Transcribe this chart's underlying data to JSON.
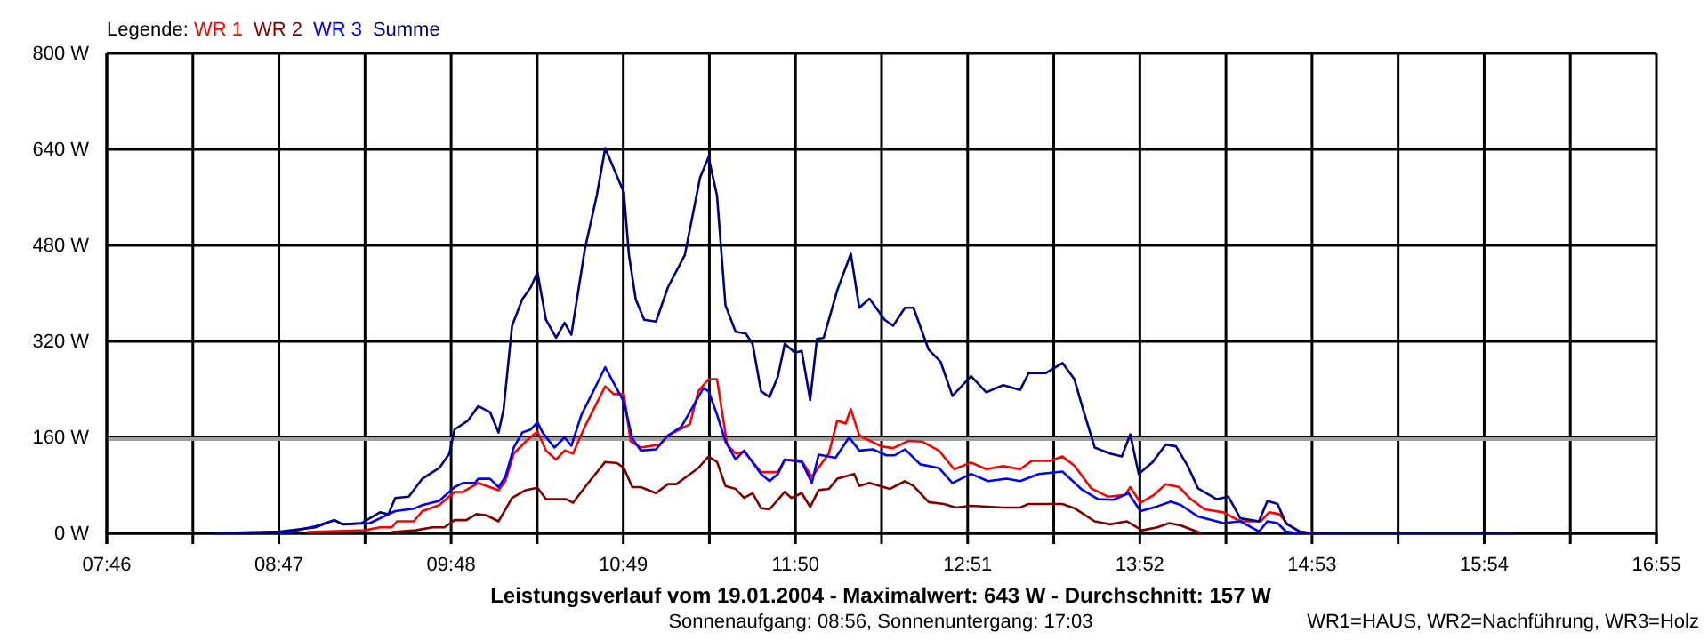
{
  "chart_data": {
    "type": "line",
    "title": "Leistungsverlauf vom 19.01.2004 - Maximalwert: 643 W - Durchschnitt: 157 W",
    "subtitle": "Sonnenaufgang: 08:56, Sonnenuntergang: 17:03",
    "annotations": [
      "WR1=HAUS, WR2=Nachführung, WR3=Holz"
    ],
    "legend_title": "Legende:",
    "legend": "top left",
    "grid": true,
    "marker": "none",
    "line_style": "solid",
    "xlim": [
      7.7667,
      16.9167
    ],
    "xticks": [
      {
        "value": 7.7667,
        "label": "07:46"
      },
      {
        "value": 8.275,
        "label": null
      },
      {
        "value": 8.7833,
        "label": "08:47"
      },
      {
        "value": 9.2917,
        "label": null
      },
      {
        "value": 9.8,
        "label": "09:48"
      },
      {
        "value": 10.3083,
        "label": null
      },
      {
        "value": 10.8167,
        "label": "10:49"
      },
      {
        "value": 11.325,
        "label": null
      },
      {
        "value": 11.8333,
        "label": "11:50"
      },
      {
        "value": 12.3417,
        "label": null
      },
      {
        "value": 12.85,
        "label": "12:51"
      },
      {
        "value": 13.3583,
        "label": null
      },
      {
        "value": 13.8667,
        "label": "13:52"
      },
      {
        "value": 14.375,
        "label": null
      },
      {
        "value": 14.8833,
        "label": "14:53"
      },
      {
        "value": 15.3917,
        "label": null
      },
      {
        "value": 15.9,
        "label": "15:54"
      },
      {
        "value": 16.4083,
        "label": null
      },
      {
        "value": 16.9167,
        "label": "16:55"
      }
    ],
    "ylim": [
      0,
      800
    ],
    "yticks": [
      {
        "value": 0,
        "label": "0 W"
      },
      {
        "value": 160,
        "label": "160 W"
      },
      {
        "value": 320,
        "label": "320 W"
      },
      {
        "value": 480,
        "label": "480 W"
      },
      {
        "value": 640,
        "label": "640 W"
      },
      {
        "value": 800,
        "label": "800 W"
      }
    ],
    "ref_lines": [
      {
        "axis": "y",
        "value": 157,
        "color": "#a0a0a0"
      }
    ],
    "series": [
      {
        "name": "WR 1",
        "color": "#ff0000",
        "x": [
          8.95,
          9.29,
          9.38,
          9.45,
          9.48,
          9.58,
          9.63,
          9.73,
          9.82,
          9.87,
          9.96,
          10.08,
          10.12,
          10.17,
          10.24,
          10.31,
          10.36,
          10.42,
          10.47,
          10.52,
          10.59,
          10.71,
          10.76,
          10.82,
          10.86,
          10.92,
          11.03,
          11.08,
          11.21,
          11.26,
          11.32,
          11.37,
          11.43,
          11.48,
          11.53,
          11.63,
          11.73,
          11.77,
          11.87,
          11.93,
          12.03,
          12.08,
          12.13,
          12.16,
          12.21,
          12.34,
          12.41,
          12.5,
          12.58,
          12.68,
          12.77,
          12.87,
          12.96,
          13.06,
          13.16,
          13.23,
          13.34,
          13.41,
          13.48,
          13.58,
          13.68,
          13.78,
          13.81,
          13.87,
          13.95,
          14.02,
          14.1,
          14.16,
          14.25,
          14.36,
          14.46,
          14.58,
          14.63,
          14.69,
          14.74,
          14.81,
          14.89
        ],
        "values": [
          2,
          5,
          10,
          10,
          20,
          20,
          37,
          47,
          69,
          69,
          84,
          72,
          87,
          133,
          153,
          170,
          138,
          123,
          138,
          133,
          178,
          245,
          232,
          232,
          153,
          143,
          148,
          163,
          182,
          237,
          257,
          257,
          148,
          133,
          136,
          102,
          102,
          123,
          121,
          94,
          133,
          188,
          183,
          207,
          163,
          145,
          142,
          154,
          153,
          138,
          107,
          118,
          107,
          112,
          107,
          121,
          121,
          128,
          113,
          75,
          61,
          64,
          77,
          51,
          64,
          82,
          77,
          59,
          40,
          35,
          20,
          20,
          35,
          32,
          15,
          3,
          0
        ]
      },
      {
        "name": "WR 2",
        "color": "#800000",
        "x": [
          9.45,
          9.59,
          9.69,
          9.76,
          9.82,
          9.89,
          9.95,
          10.01,
          10.08,
          10.16,
          10.24,
          10.31,
          10.36,
          10.48,
          10.52,
          10.61,
          10.71,
          10.78,
          10.82,
          10.87,
          10.92,
          11.01,
          11.08,
          11.13,
          11.26,
          11.32,
          11.37,
          11.42,
          11.48,
          11.53,
          11.58,
          11.63,
          11.68,
          11.77,
          11.81,
          11.87,
          11.92,
          11.97,
          12.03,
          12.08,
          12.18,
          12.21,
          12.27,
          12.39,
          12.48,
          12.53,
          12.62,
          12.71,
          12.78,
          12.87,
          13.06,
          13.16,
          13.21,
          13.41,
          13.48,
          13.6,
          13.69,
          13.79,
          13.88,
          13.97,
          14.04,
          14.11,
          14.23
        ],
        "values": [
          2,
          5,
          10,
          10,
          22,
          22,
          32,
          30,
          20,
          59,
          72,
          76,
          57,
          57,
          51,
          84,
          119,
          117,
          109,
          77,
          77,
          67,
          82,
          82,
          109,
          128,
          119,
          79,
          74,
          59,
          67,
          42,
          40,
          69,
          59,
          67,
          44,
          72,
          74,
          91,
          99,
          79,
          84,
          74,
          87,
          79,
          52,
          49,
          43,
          46,
          43,
          43,
          49,
          49,
          42,
          20,
          15,
          20,
          5,
          10,
          17,
          13,
          0
        ]
      },
      {
        "name": "WR 3",
        "color": "#0000ff",
        "x": [
          8.79,
          8.89,
          9.0,
          9.11,
          9.16,
          9.32,
          9.38,
          9.47,
          9.58,
          9.63,
          9.73,
          9.82,
          9.87,
          9.94,
          9.96,
          10.03,
          10.08,
          10.12,
          10.17,
          10.22,
          10.27,
          10.31,
          10.34,
          10.41,
          10.47,
          10.51,
          10.57,
          10.64,
          10.71,
          10.82,
          10.87,
          10.92,
          11.01,
          11.08,
          11.16,
          11.29,
          11.32,
          11.37,
          11.42,
          11.48,
          11.53,
          11.63,
          11.68,
          11.73,
          11.77,
          11.87,
          11.93,
          11.97,
          12.07,
          12.15,
          12.21,
          12.29,
          12.37,
          12.42,
          12.48,
          12.57,
          12.68,
          12.76,
          12.87,
          12.97,
          13.08,
          13.16,
          13.27,
          13.41,
          13.52,
          13.62,
          13.71,
          13.8,
          13.87,
          13.97,
          14.05,
          14.11,
          14.21,
          14.36,
          14.46,
          14.57,
          14.62,
          14.68,
          14.73,
          14.81
        ],
        "values": [
          0,
          5,
          12,
          22,
          15,
          17,
          25,
          37,
          41,
          47,
          54,
          77,
          84,
          84,
          91,
          91,
          77,
          94,
          143,
          168,
          173,
          185,
          168,
          143,
          160,
          146,
          198,
          237,
          277,
          219,
          158,
          138,
          140,
          163,
          178,
          242,
          237,
          198,
          153,
          123,
          138,
          99,
          87,
          99,
          123,
          119,
          84,
          131,
          126,
          160,
          138,
          140,
          130,
          130,
          140,
          115,
          109,
          84,
          99,
          87,
          91,
          87,
          99,
          103,
          74,
          57,
          56,
          67,
          37,
          45,
          53,
          47,
          28,
          17,
          20,
          3,
          20,
          17,
          3,
          0
        ]
      },
      {
        "name": "Summe",
        "color": "#000080",
        "x": [
          8.4,
          8.79,
          9.0,
          9.11,
          9.16,
          9.27,
          9.38,
          9.43,
          9.47,
          9.55,
          9.63,
          9.73,
          9.79,
          9.82,
          9.9,
          9.96,
          10.03,
          10.08,
          10.11,
          10.16,
          10.22,
          10.27,
          10.31,
          10.36,
          10.42,
          10.47,
          10.51,
          10.59,
          10.66,
          10.71,
          10.82,
          10.85,
          10.89,
          10.94,
          11.01,
          11.08,
          11.18,
          11.27,
          11.32,
          11.37,
          11.42,
          11.48,
          11.54,
          11.58,
          11.63,
          11.68,
          11.73,
          11.77,
          11.83,
          11.87,
          11.92,
          11.96,
          12.0,
          12.08,
          12.16,
          12.21,
          12.27,
          12.36,
          12.41,
          12.48,
          12.53,
          12.62,
          12.69,
          12.76,
          12.87,
          12.96,
          13.06,
          13.16,
          13.21,
          13.31,
          13.41,
          13.48,
          13.53,
          13.6,
          13.69,
          13.76,
          13.81,
          13.86,
          13.94,
          14.02,
          14.08,
          14.15,
          14.21,
          14.32,
          14.39,
          14.46,
          14.57,
          14.62,
          14.68,
          14.73,
          14.81,
          14.89,
          16.07
        ],
        "values": [
          0,
          3,
          10,
          22,
          15,
          17,
          35,
          32,
          59,
          61,
          91,
          109,
          133,
          173,
          188,
          212,
          202,
          168,
          207,
          346,
          390,
          410,
          435,
          356,
          326,
          351,
          331,
          474,
          563,
          642,
          568,
          464,
          390,
          356,
          353,
          410,
          464,
          593,
          627,
          563,
          380,
          336,
          333,
          316,
          237,
          227,
          262,
          316,
          301,
          304,
          222,
          324,
          326,
          405,
          466,
          376,
          391,
          356,
          346,
          376,
          376,
          306,
          286,
          229,
          262,
          235,
          247,
          239,
          267,
          267,
          284,
          257,
          208,
          143,
          133,
          128,
          165,
          99,
          118,
          148,
          145,
          112,
          75,
          57,
          61,
          25,
          20,
          54,
          49,
          16,
          3,
          0,
          0
        ]
      }
    ]
  }
}
